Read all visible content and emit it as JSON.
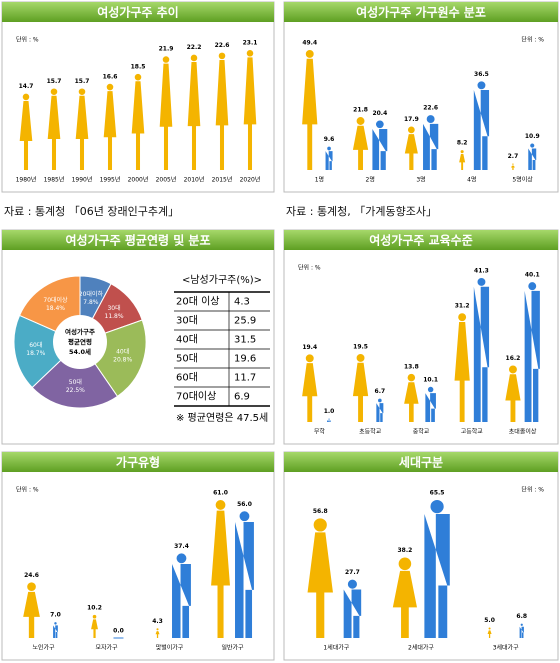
{
  "chart_data": [
    {
      "type": "pictogram",
      "title": "여성가구주 추이",
      "unit": "단위 : %",
      "source": "자료 : 통계청 「06년 장래인구추계」",
      "categories": [
        "1980년",
        "1985년",
        "1990년",
        "1995년",
        "2000년",
        "2005년",
        "2010년",
        "2015년",
        "2020년"
      ],
      "series": [
        {
          "name": "여성",
          "color": "#f4b400",
          "values": [
            14.7,
            15.7,
            15.7,
            16.6,
            18.5,
            21.9,
            22.2,
            22.6,
            23.1
          ]
        }
      ]
    },
    {
      "type": "pictogram",
      "title": "여성가구주 가구원수 분포",
      "unit": "단위 : %",
      "source": "자료 : 통계청, 「가계동향조사」",
      "categories": [
        "1명",
        "2명",
        "3명",
        "4명",
        "5명이상"
      ],
      "series": [
        {
          "name": "여성",
          "color": "#f4b400",
          "values": [
            49.4,
            21.8,
            17.9,
            8.2,
            2.7
          ]
        },
        {
          "name": "남성",
          "color": "#2f7ed8",
          "values": [
            9.6,
            20.4,
            22.6,
            36.5,
            10.9
          ]
        }
      ]
    },
    {
      "type": "pie",
      "title": "여성가구주 평균연령 및 분포",
      "center_label": [
        "여성가구주",
        "평균연령",
        "54.0세"
      ],
      "categories": [
        "20대이하",
        "30대",
        "40대",
        "50대",
        "60대",
        "70대이상"
      ],
      "values": [
        7.8,
        11.8,
        20.8,
        22.5,
        18.7,
        18.4
      ],
      "value_labels": [
        "7.8%",
        "11.8%",
        "20.8%",
        "22.5%",
        "18.7%",
        "18.4%"
      ],
      "colors": [
        "#4f81bd",
        "#c0504d",
        "#9bbb59",
        "#8064a2",
        "#4bacc6",
        "#f79646"
      ],
      "table": {
        "title": "<남성가구주(%)>",
        "rows": [
          [
            "20대 이상",
            4.3
          ],
          [
            "30대",
            25.9
          ],
          [
            "40대",
            31.5
          ],
          [
            "50대",
            19.6
          ],
          [
            "60대",
            11.7
          ],
          [
            "70대이상",
            6.9
          ]
        ]
      },
      "note": "※ 평균연령은 47.5세"
    },
    {
      "type": "pictogram",
      "title": "여성가구주 교육수준",
      "unit": "단위 : %",
      "categories": [
        "무학",
        "초등학교",
        "중학교",
        "고등학교",
        "초대졸이상"
      ],
      "series": [
        {
          "name": "여성",
          "color": "#f4b400",
          "values": [
            19.4,
            19.5,
            13.8,
            31.2,
            16.2
          ]
        },
        {
          "name": "남성",
          "color": "#2f7ed8",
          "values": [
            1.0,
            6.7,
            10.1,
            41.3,
            40.1
          ],
          "value_labels": [
            "1.0",
            "6.7",
            "10.1",
            "41.3",
            "40.1"
          ]
        }
      ]
    },
    {
      "type": "pictogram",
      "title": "가구유형",
      "unit": "단위 : %",
      "categories": [
        "노인가구",
        "모자가구",
        "맞벌이가구",
        "일반가구"
      ],
      "series": [
        {
          "name": "여성",
          "color": "#f4b400",
          "values": [
            24.6,
            10.2,
            4.3,
            61.0
          ],
          "value_labels": [
            "24.6",
            "10.2",
            "4.3",
            "61.0"
          ]
        },
        {
          "name": "남성",
          "color": "#2f7ed8",
          "values": [
            7.0,
            0.0,
            37.4,
            56.0
          ],
          "value_labels": [
            "7.0",
            "0.0",
            "37.4",
            "56.0"
          ]
        }
      ]
    },
    {
      "type": "pictogram",
      "title": "세대구분",
      "unit": "단위 : %",
      "categories": [
        "1세대가구",
        "2세대가구",
        "3세대가구"
      ],
      "series": [
        {
          "name": "여성",
          "color": "#f4b400",
          "values": [
            56.8,
            38.2,
            5.0
          ],
          "value_labels": [
            "56.8",
            "38.2",
            "5.0"
          ]
        },
        {
          "name": "남성",
          "color": "#2f7ed8",
          "values": [
            27.7,
            65.5,
            6.8
          ]
        }
      ]
    }
  ]
}
